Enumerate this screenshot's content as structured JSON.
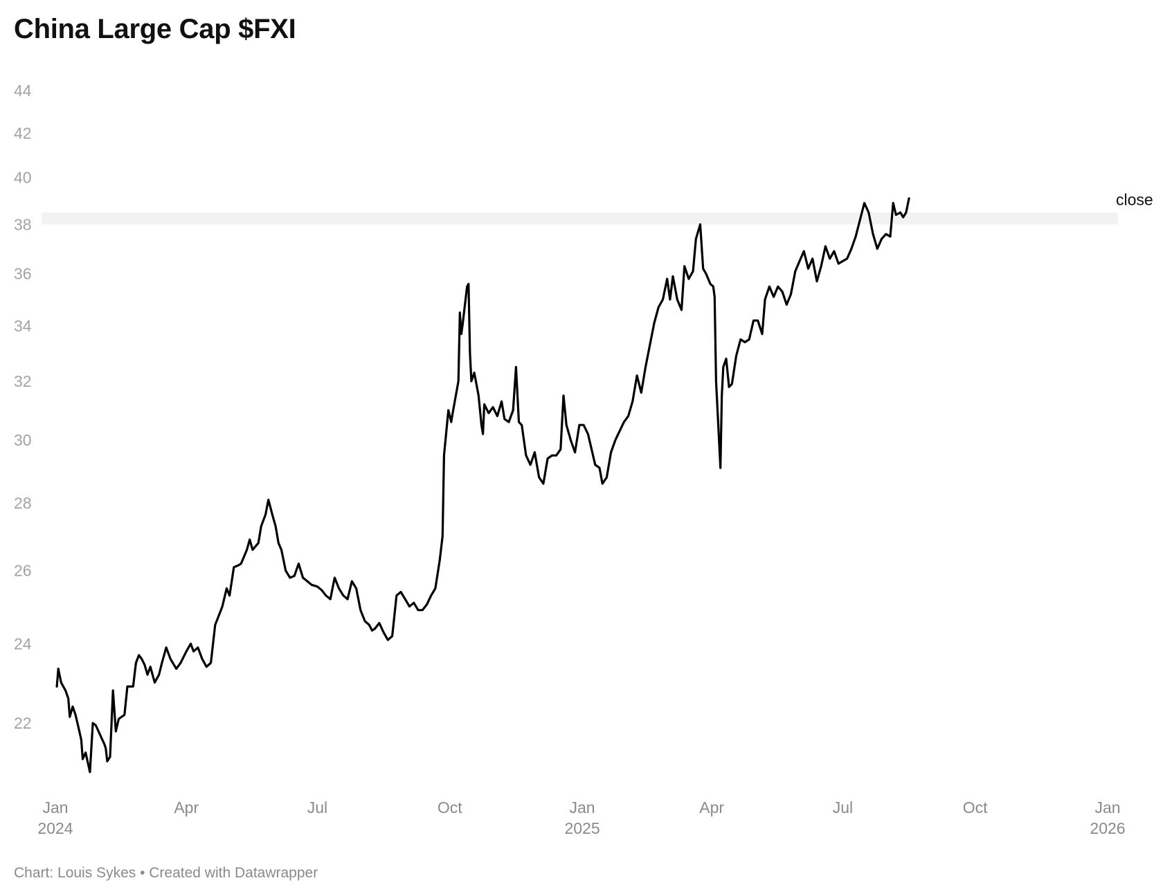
{
  "title": "China Large Cap $FXI",
  "footer": "Chart: Louis Sykes • Created with Datawrapper",
  "chart_data": {
    "type": "line",
    "title": "China Large Cap $FXI",
    "xlabel": "",
    "ylabel": "",
    "y_scale": "log",
    "ylim": [
      21,
      44
    ],
    "y_ticks": [
      44,
      42,
      40,
      38,
      36,
      34,
      32,
      30,
      28,
      26,
      24,
      22
    ],
    "x_range": [
      "2024-01-01",
      "2026-01-01"
    ],
    "x_ticks": [
      {
        "date": "2024-01-01",
        "label": "Jan",
        "year": "2024"
      },
      {
        "date": "2024-04-01",
        "label": "Apr",
        "year": ""
      },
      {
        "date": "2024-07-01",
        "label": "Jul",
        "year": ""
      },
      {
        "date": "2024-10-01",
        "label": "Oct",
        "year": ""
      },
      {
        "date": "2025-01-01",
        "label": "Jan",
        "year": "2025"
      },
      {
        "date": "2025-04-01",
        "label": "Apr",
        "year": ""
      },
      {
        "date": "2025-07-01",
        "label": "Jul",
        "year": ""
      },
      {
        "date": "2025-10-01",
        "label": "Oct",
        "year": ""
      },
      {
        "date": "2026-01-01",
        "label": "Jan",
        "year": "2026"
      }
    ],
    "grid": false,
    "highlight_band": [
      38.0,
      38.5
    ],
    "series": [
      {
        "name": "close",
        "color": "#000000",
        "points": [
          [
            "2024-01-02",
            22.9
          ],
          [
            "2024-01-03",
            23.35
          ],
          [
            "2024-01-05",
            23.0
          ],
          [
            "2024-01-08",
            22.8
          ],
          [
            "2024-01-10",
            22.6
          ],
          [
            "2024-01-11",
            22.15
          ],
          [
            "2024-01-13",
            22.4
          ],
          [
            "2024-01-15",
            22.2
          ],
          [
            "2024-01-17",
            21.9
          ],
          [
            "2024-01-19",
            21.6
          ],
          [
            "2024-01-20",
            21.15
          ],
          [
            "2024-01-22",
            21.3
          ],
          [
            "2024-01-24",
            21.0
          ],
          [
            "2024-01-25",
            20.85
          ],
          [
            "2024-01-27",
            22.0
          ],
          [
            "2024-01-29",
            21.95
          ],
          [
            "2024-01-31",
            21.8
          ],
          [
            "2024-02-02",
            21.65
          ],
          [
            "2024-02-04",
            21.5
          ],
          [
            "2024-02-05",
            21.4
          ],
          [
            "2024-02-06",
            21.1
          ],
          [
            "2024-02-08",
            21.2
          ],
          [
            "2024-02-10",
            22.8
          ],
          [
            "2024-02-12",
            21.8
          ],
          [
            "2024-02-14",
            22.1
          ],
          [
            "2024-02-16",
            22.15
          ],
          [
            "2024-02-18",
            22.2
          ],
          [
            "2024-02-20",
            22.9
          ],
          [
            "2024-02-24",
            22.9
          ],
          [
            "2024-02-26",
            23.5
          ],
          [
            "2024-02-28",
            23.7
          ],
          [
            "2024-03-01",
            23.6
          ],
          [
            "2024-03-03",
            23.45
          ],
          [
            "2024-03-05",
            23.2
          ],
          [
            "2024-03-07",
            23.4
          ],
          [
            "2024-03-10",
            23.0
          ],
          [
            "2024-03-13",
            23.2
          ],
          [
            "2024-03-15",
            23.5
          ],
          [
            "2024-03-18",
            23.9
          ],
          [
            "2024-03-21",
            23.6
          ],
          [
            "2024-03-25",
            23.35
          ],
          [
            "2024-03-28",
            23.5
          ],
          [
            "2024-04-01",
            23.8
          ],
          [
            "2024-04-04",
            24.0
          ],
          [
            "2024-04-06",
            23.8
          ],
          [
            "2024-04-09",
            23.9
          ],
          [
            "2024-04-12",
            23.6
          ],
          [
            "2024-04-15",
            23.4
          ],
          [
            "2024-04-18",
            23.5
          ],
          [
            "2024-04-21",
            24.5
          ],
          [
            "2024-04-23",
            24.7
          ],
          [
            "2024-04-26",
            25.0
          ],
          [
            "2024-04-29",
            25.5
          ],
          [
            "2024-05-01",
            25.3
          ],
          [
            "2024-05-04",
            26.1
          ],
          [
            "2024-05-07",
            26.15
          ],
          [
            "2024-05-09",
            26.2
          ],
          [
            "2024-05-11",
            26.4
          ],
          [
            "2024-05-13",
            26.6
          ],
          [
            "2024-05-15",
            26.9
          ],
          [
            "2024-05-17",
            26.6
          ],
          [
            "2024-05-19",
            26.7
          ],
          [
            "2024-05-21",
            26.8
          ],
          [
            "2024-05-23",
            27.3
          ],
          [
            "2024-05-26",
            27.65
          ],
          [
            "2024-05-28",
            28.1
          ],
          [
            "2024-05-31",
            27.6
          ],
          [
            "2024-06-02",
            27.3
          ],
          [
            "2024-06-04",
            26.8
          ],
          [
            "2024-06-06",
            26.6
          ],
          [
            "2024-06-09",
            26.0
          ],
          [
            "2024-06-12",
            25.8
          ],
          [
            "2024-06-15",
            25.85
          ],
          [
            "2024-06-18",
            26.2
          ],
          [
            "2024-06-21",
            25.8
          ],
          [
            "2024-06-24",
            25.7
          ],
          [
            "2024-06-27",
            25.6
          ],
          [
            "2024-07-01",
            25.55
          ],
          [
            "2024-07-04",
            25.45
          ],
          [
            "2024-07-07",
            25.3
          ],
          [
            "2024-07-10",
            25.2
          ],
          [
            "2024-07-13",
            25.8
          ],
          [
            "2024-07-16",
            25.5
          ],
          [
            "2024-07-19",
            25.3
          ],
          [
            "2024-07-22",
            25.2
          ],
          [
            "2024-07-25",
            25.7
          ],
          [
            "2024-07-28",
            25.5
          ],
          [
            "2024-07-31",
            24.9
          ],
          [
            "2024-08-03",
            24.6
          ],
          [
            "2024-08-06",
            24.5
          ],
          [
            "2024-08-08",
            24.35
          ],
          [
            "2024-08-10",
            24.4
          ],
          [
            "2024-08-13",
            24.55
          ],
          [
            "2024-08-16",
            24.3
          ],
          [
            "2024-08-19",
            24.1
          ],
          [
            "2024-08-22",
            24.2
          ],
          [
            "2024-08-25",
            25.3
          ],
          [
            "2024-08-28",
            25.4
          ],
          [
            "2024-08-31",
            25.2
          ],
          [
            "2024-09-03",
            25.0
          ],
          [
            "2024-09-06",
            25.1
          ],
          [
            "2024-09-09",
            24.9
          ],
          [
            "2024-09-12",
            24.9
          ],
          [
            "2024-09-15",
            25.05
          ],
          [
            "2024-09-18",
            25.3
          ],
          [
            "2024-09-21",
            25.5
          ],
          [
            "2024-09-24",
            26.3
          ],
          [
            "2024-09-26",
            27.0
          ],
          [
            "2024-09-27",
            29.5
          ],
          [
            "2024-09-30",
            31.0
          ],
          [
            "2024-10-02",
            30.6
          ],
          [
            "2024-10-03",
            30.9
          ],
          [
            "2024-10-07",
            32.0
          ],
          [
            "2024-10-08",
            34.5
          ],
          [
            "2024-10-09",
            33.7
          ],
          [
            "2024-10-10",
            34.1
          ],
          [
            "2024-10-13",
            35.5
          ],
          [
            "2024-10-14",
            35.6
          ],
          [
            "2024-10-15",
            33.0
          ],
          [
            "2024-10-16",
            32.0
          ],
          [
            "2024-10-18",
            32.3
          ],
          [
            "2024-10-21",
            31.5
          ],
          [
            "2024-10-23",
            30.5
          ],
          [
            "2024-10-24",
            30.2
          ],
          [
            "2024-10-25",
            31.2
          ],
          [
            "2024-10-28",
            30.9
          ],
          [
            "2024-10-31",
            31.1
          ],
          [
            "2024-11-03",
            30.8
          ],
          [
            "2024-11-06",
            31.3
          ],
          [
            "2024-11-08",
            30.7
          ],
          [
            "2024-11-11",
            30.6
          ],
          [
            "2024-11-14",
            31.0
          ],
          [
            "2024-11-16",
            32.5
          ],
          [
            "2024-11-18",
            30.6
          ],
          [
            "2024-11-20",
            30.5
          ],
          [
            "2024-11-23",
            29.5
          ],
          [
            "2024-11-26",
            29.2
          ],
          [
            "2024-11-29",
            29.6
          ],
          [
            "2024-12-02",
            28.8
          ],
          [
            "2024-12-05",
            28.6
          ],
          [
            "2024-12-08",
            29.4
          ],
          [
            "2024-12-11",
            29.5
          ],
          [
            "2024-12-14",
            29.5
          ],
          [
            "2024-12-17",
            29.7
          ],
          [
            "2024-12-19",
            31.5
          ],
          [
            "2024-12-21",
            30.5
          ],
          [
            "2024-12-24",
            30.0
          ],
          [
            "2024-12-27",
            29.6
          ],
          [
            "2024-12-30",
            30.5
          ],
          [
            "2025-01-02",
            30.5
          ],
          [
            "2025-01-05",
            30.2
          ],
          [
            "2025-01-08",
            29.6
          ],
          [
            "2025-01-10",
            29.2
          ],
          [
            "2025-01-13",
            29.1
          ],
          [
            "2025-01-15",
            28.6
          ],
          [
            "2025-01-18",
            28.8
          ],
          [
            "2025-01-21",
            29.6
          ],
          [
            "2025-01-24",
            30.0
          ],
          [
            "2025-01-27",
            30.3
          ],
          [
            "2025-01-30",
            30.6
          ],
          [
            "2025-02-02",
            30.8
          ],
          [
            "2025-02-05",
            31.3
          ],
          [
            "2025-02-08",
            32.2
          ],
          [
            "2025-02-11",
            31.6
          ],
          [
            "2025-02-14",
            32.5
          ],
          [
            "2025-02-17",
            33.3
          ],
          [
            "2025-02-20",
            34.1
          ],
          [
            "2025-02-23",
            34.7
          ],
          [
            "2025-02-26",
            35.0
          ],
          [
            "2025-03-01",
            35.8
          ],
          [
            "2025-03-03",
            35.0
          ],
          [
            "2025-03-05",
            35.9
          ],
          [
            "2025-03-08",
            35.0
          ],
          [
            "2025-03-11",
            34.6
          ],
          [
            "2025-03-13",
            36.3
          ],
          [
            "2025-03-16",
            35.8
          ],
          [
            "2025-03-19",
            36.1
          ],
          [
            "2025-03-21",
            37.4
          ],
          [
            "2025-03-24",
            38.0
          ],
          [
            "2025-03-26",
            36.2
          ],
          [
            "2025-03-28",
            36.0
          ],
          [
            "2025-03-31",
            35.6
          ],
          [
            "2025-04-02",
            35.5
          ],
          [
            "2025-04-03",
            35.1
          ],
          [
            "2025-04-04",
            32.0
          ],
          [
            "2025-04-07",
            29.1
          ],
          [
            "2025-04-08",
            31.5
          ],
          [
            "2025-04-09",
            32.5
          ],
          [
            "2025-04-11",
            32.8
          ],
          [
            "2025-04-13",
            31.8
          ],
          [
            "2025-04-15",
            31.9
          ],
          [
            "2025-04-18",
            32.9
          ],
          [
            "2025-04-21",
            33.5
          ],
          [
            "2025-04-24",
            33.4
          ],
          [
            "2025-04-27",
            33.5
          ],
          [
            "2025-04-30",
            34.2
          ],
          [
            "2025-05-03",
            34.2
          ],
          [
            "2025-05-06",
            33.7
          ],
          [
            "2025-05-08",
            35.0
          ],
          [
            "2025-05-11",
            35.5
          ],
          [
            "2025-05-14",
            35.1
          ],
          [
            "2025-05-17",
            35.5
          ],
          [
            "2025-05-20",
            35.3
          ],
          [
            "2025-05-23",
            34.8
          ],
          [
            "2025-05-26",
            35.2
          ],
          [
            "2025-05-29",
            36.1
          ],
          [
            "2025-06-01",
            36.5
          ],
          [
            "2025-06-04",
            36.9
          ],
          [
            "2025-06-07",
            36.2
          ],
          [
            "2025-06-10",
            36.6
          ],
          [
            "2025-06-13",
            35.7
          ],
          [
            "2025-06-16",
            36.3
          ],
          [
            "2025-06-19",
            37.1
          ],
          [
            "2025-06-22",
            36.6
          ],
          [
            "2025-06-25",
            36.9
          ],
          [
            "2025-06-28",
            36.4
          ],
          [
            "2025-07-01",
            36.5
          ],
          [
            "2025-07-04",
            36.6
          ],
          [
            "2025-07-07",
            37.0
          ],
          [
            "2025-07-10",
            37.5
          ],
          [
            "2025-07-13",
            38.2
          ],
          [
            "2025-07-16",
            38.9
          ],
          [
            "2025-07-19",
            38.5
          ],
          [
            "2025-07-22",
            37.6
          ],
          [
            "2025-07-25",
            37.0
          ],
          [
            "2025-07-28",
            37.4
          ],
          [
            "2025-07-31",
            37.6
          ],
          [
            "2025-08-03",
            37.5
          ],
          [
            "2025-08-05",
            38.9
          ],
          [
            "2025-08-07",
            38.4
          ],
          [
            "2025-08-10",
            38.5
          ],
          [
            "2025-08-12",
            38.3
          ],
          [
            "2025-08-14",
            38.5
          ],
          [
            "2025-08-16",
            39.1
          ]
        ]
      }
    ]
  }
}
